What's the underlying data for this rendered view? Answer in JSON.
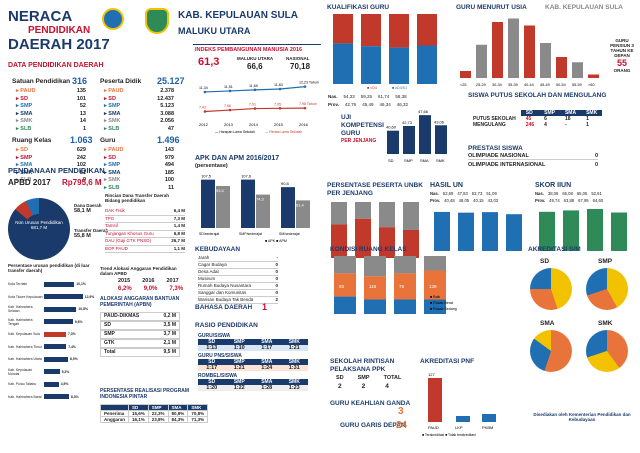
{
  "title": {
    "l1": "NERACA",
    "l2": "PENDIDIKAN",
    "l3": "DAERAH 2017"
  },
  "region": {
    "name": "KAB. KEPULAUAN SULA",
    "province": "MALUKU UTARA"
  },
  "data_pendidikan": {
    "title": "DATA PENDIDIKAN DAERAH",
    "satuan": {
      "label": "Satuan Pendidikan",
      "total": "316",
      "rows": [
        [
          "PAUD",
          "135"
        ],
        [
          "SD",
          "101"
        ],
        [
          "SMP",
          "52"
        ],
        [
          "SMA",
          "13"
        ],
        [
          "SMK",
          "14"
        ],
        [
          "SLB",
          "1"
        ]
      ]
    },
    "peserta": {
      "label": "Peserta Didik",
      "total": "25.127",
      "rows": [
        [
          "PAUD",
          "2.378"
        ],
        [
          "SD",
          "12.437"
        ],
        [
          "SMP",
          "5.123"
        ],
        [
          "SMA",
          "3.088"
        ],
        [
          "SMK",
          "2.056"
        ],
        [
          "SLB",
          "47"
        ]
      ]
    },
    "ruang": {
      "label": "Ruang Kelas",
      "total": "1.063",
      "rows": [
        [
          "SD",
          "629"
        ],
        [
          "SMP",
          "242"
        ],
        [
          "SMA",
          "102"
        ],
        [
          "SMK",
          "81"
        ],
        [
          "SLB",
          "9"
        ]
      ]
    },
    "guru": {
      "label": "Guru",
      "total": "1.496",
      "rows": [
        [
          "PAUD",
          "143"
        ],
        [
          "SD",
          "979"
        ],
        [
          "SMP",
          "494"
        ],
        [
          "SMA",
          "185"
        ],
        [
          "SMK",
          "100"
        ],
        [
          "SLB",
          "11"
        ]
      ]
    }
  },
  "ipm": {
    "title": "INDEKS PEMBANGUNAN MANUSIA 2016",
    "kab": "61,3",
    "mu_label": "MALUKU UTARA",
    "mu": "66,6",
    "nas_label": "NASIONAL",
    "nas": "70,18",
    "years": [
      "2012",
      "2013",
      "2014",
      "2015",
      "2016"
    ],
    "top": [
      "11,34",
      "11,51",
      "11,69",
      "11,83",
      "12,23 Tahun"
    ],
    "bot": [
      "7,42",
      "7,66",
      "7,91",
      "7,95",
      "7,98 Tahun"
    ],
    "legend1": "Harapan Lama Sekolah",
    "legend2": "Rerata Lama Sekolah"
  },
  "kualifikasi": {
    "title": "KUALIFIKASI GURU",
    "nas": [
      "54,33",
      "59,25",
      "61,74",
      "58,38"
    ],
    "prov": [
      "42,76",
      "45,49",
      "46,34",
      "46,32"
    ],
    "leg": [
      "<D4",
      "≥D4/S1"
    ]
  },
  "usia": {
    "title": "GURU MENURUT USIA",
    "sub": "KAB. KEPULAUAN SULA",
    "note": "GURU PENSIUN 3 TAHUN KE DEPAN",
    "orang": "55",
    "orang_label": "ORANG",
    "ages": [
      "<25",
      "25-29",
      "30-34",
      "35-39",
      "40-44",
      "45-49",
      "50-54",
      "55-59",
      ">60"
    ]
  },
  "uk": {
    "title": "UJI KOMPETENSI GURU",
    "sub": "PER JENJANG",
    "vals": [
      "40,60",
      "42,73",
      "47,66",
      "43,06"
    ],
    "labels": [
      "SD",
      "SMP",
      "SMA",
      "SMK"
    ]
  },
  "putus": {
    "title": "SISWA PUTUS SEKOLAH DAN MENGULANG",
    "head": [
      "SD",
      "SMP",
      "SMA",
      "SMK"
    ],
    "r1": [
      "PUTUS SEKOLAH",
      "45",
      "6",
      "18",
      "1"
    ],
    "r2": [
      "MENGULANG",
      "246",
      "4",
      "-",
      "1"
    ]
  },
  "prestasi": {
    "title": "PRESTASI SISWA",
    "r1": [
      "OLIMPIADE NASIONAL",
      "0"
    ],
    "r2": [
      "OLIMPIADE INTERNASIONAL",
      "0"
    ]
  },
  "apk": {
    "title": "APK DAN APM 2016/2017",
    "sub": "(persentase)",
    "apk": [
      "107,5",
      "107,6",
      "90,8"
    ],
    "apm": [
      "93,4",
      "74,3",
      "61,4"
    ],
    "labels": [
      "SD/sederajat",
      "SMP/sederajat",
      "SM/sederajat"
    ],
    "leg": [
      "APK",
      "APM"
    ]
  },
  "unbk": {
    "title": "PERSENTASE PESERTA UNBK PER JENJANG"
  },
  "hasil_un": {
    "title": "HASIL UN",
    "nas": [
      "52,69",
      "47,93",
      "53,73",
      "51,09"
    ],
    "prov": [
      "40,48",
      "48,05",
      "40,15",
      "43,03"
    ],
    "vals": [
      "55,84",
      "54,79",
      "55,53",
      "52,56"
    ]
  },
  "skor": {
    "title": "SKOR IIUN",
    "nas": [
      "38,06",
      "65,08",
      "65,05",
      "52,61"
    ],
    "prov": [
      "49,74",
      "63,88",
      "67,95",
      "64,60"
    ]
  },
  "pendanaan": {
    "title": "PENDANAAN PENDIDIKAN",
    "apbd": "APBD 2017",
    "apbd_val": "Rp795,6 M",
    "nonurusan": "Non Urusan Pendidikan",
    "non_val": "681,7 M",
    "dana_label": "Dana Daerah",
    "dana_val": "58,1 M",
    "transfer_label": "Transfer Daerah",
    "transfer_val": "55,8 M",
    "rincian": "Rincian Dana Transfer Daerah Bidang pendidikan",
    "rows": [
      [
        "DAK Fisik",
        "6,4 M"
      ],
      [
        "TPG",
        "7,3 M"
      ],
      [
        "Tamsil",
        "1,4 M"
      ],
      [
        "Tunjangan Khusus Guru",
        "6,8 M"
      ],
      [
        "DAU (Gaji GTK PNSD)",
        "26,7 M"
      ],
      [
        "BOP PAUD",
        "1,1 M"
      ]
    ]
  },
  "persentase_urusan": {
    "title": "Persentase urusan pendidikan (di luar transfer daerah)",
    "rows": [
      [
        "Kota Ternate",
        "10,1%"
      ],
      [
        "Kota Tidore Kepulauan",
        "12,9%"
      ],
      [
        "Kab. Halmahera Selatan",
        "10,8%"
      ],
      [
        "Kab. Halmahera Tengah",
        "9,6%"
      ],
      [
        "Kab. Kepulauan Sula",
        "7,3%"
      ],
      [
        "Kab. Halmahera Timur",
        "7,4%"
      ],
      [
        "Kab. Halmahera Utara",
        "8,0%"
      ],
      [
        "Kab. Kepulauan Morotai",
        "5,2%"
      ],
      [
        "Kab. Pulau Taliabu",
        "4,9%"
      ],
      [
        "Kab. Halmahera Barat",
        "8,3%"
      ]
    ]
  },
  "trend": {
    "title": "Trend Alokasi Anggaran Pendidikan dalam APBD",
    "years": [
      "2015",
      "2016",
      "2017"
    ],
    "vals": [
      "6,2%",
      "9,0%",
      "7,3%"
    ]
  },
  "alokasi": {
    "title": "ALOKASI ANGGARAN BANTUAN PEMERINTAH (APBN)",
    "rows": [
      [
        "PAUD-DIKMAS",
        "0,2 M"
      ],
      [
        "SD",
        "3,5 M"
      ],
      [
        "SMP",
        "3,7 M"
      ],
      [
        "GTK",
        "2,1 M"
      ],
      [
        "Total",
        "9,5 M"
      ]
    ]
  },
  "pip": {
    "title": "PERSENTASE REALISASI PROGRAM INDONESIA PINTAR",
    "head": [
      "SD",
      "SMP",
      "SMA",
      "SMK"
    ],
    "r1": [
      "Penerima",
      "15,6%",
      "22,3%",
      "80,9%",
      "70,8%"
    ],
    "r2": [
      "Anggaran",
      "16,1%",
      "23,8%",
      "84,3%",
      "71,3%"
    ]
  },
  "kebudayaan": {
    "title": "KEBUDAYAAN",
    "rows": [
      [
        "Jarah",
        "-"
      ],
      [
        "Cagar Budaya",
        "0"
      ],
      [
        "Desa Adat",
        "0"
      ],
      [
        "Museum",
        "0"
      ],
      [
        "Rumah Budaya Nusantara",
        "0"
      ],
      [
        "Sanggar dan Komunitas",
        "0"
      ],
      [
        "Warisan Budaya Tak Benda",
        "2"
      ]
    ]
  },
  "bahasa": {
    "title": "BAHASA DAERAH",
    "val": "1"
  },
  "rasio": {
    "title": "RASIO PENDIDIKAN",
    "gs": "GURU/SISWA",
    "gs_h": [
      "SD",
      "SMP",
      "SMA",
      "SMK"
    ],
    "gs_v": [
      "1:13",
      "1:10",
      "1:17",
      "1:21"
    ],
    "gp": "GURU PNS/SISWA",
    "gp_v": [
      "1:17",
      "1:21",
      "1:24",
      "1:31"
    ],
    "rb": "ROMBEL/SISWA",
    "rb_v": [
      "1:20",
      "1:22",
      "1:28",
      "1:23"
    ]
  },
  "kondisi": {
    "title": "KONDISI RUANG KELAS",
    "leg": [
      "Baik",
      "Rusak Berat",
      "Rusak Sedang"
    ],
    "vals": [
      "93",
      "116",
      "79",
      "139"
    ]
  },
  "rintisan": {
    "title": "SEKOLAH RINTISAN PELAKSANA PPK",
    "head": [
      "SD",
      "SMP",
      "TOTAL"
    ],
    "vals": [
      "2",
      "2",
      "4"
    ]
  },
  "keahlian": {
    "title": "GURU KEAHLIAN GANDA",
    "val": "3"
  },
  "garis": {
    "title": "GURU GARIS DEPAN",
    "val": "24"
  },
  "pnf": {
    "title": "AKREDITASI PNF",
    "leg": [
      "Terakreditasi",
      "Tidak terakreditasi"
    ],
    "val": "127",
    "labels": [
      "PAUD",
      "LKP",
      "PKBM"
    ]
  },
  "akred": {
    "title": "AKREDITASI S/M",
    "sd": "SD",
    "smp": "SMP",
    "sma": "SMA",
    "smk": "SMK"
  },
  "footer": "Disediakan oleh Kementerian Pendidikan dan Kebudayaan",
  "colors": {
    "blue": "#1f6fb2",
    "red": "#c0392b",
    "orange": "#e8743b",
    "yellow": "#f2c200",
    "gray": "#8a8a8a"
  }
}
